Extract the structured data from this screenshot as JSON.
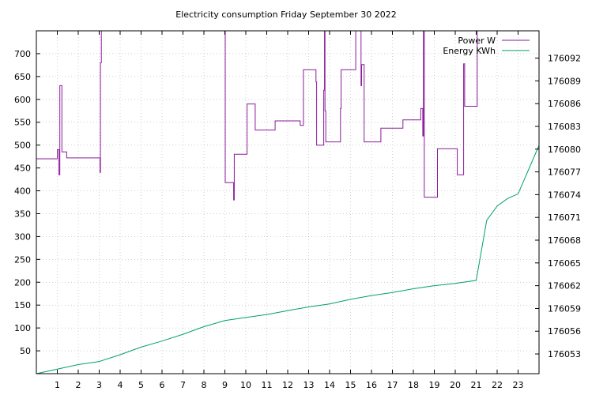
{
  "chart_data": {
    "type": "line",
    "title": "Electricity consumption Friday September 30 2022",
    "xlabel": "",
    "ylabel": "",
    "y2label": "",
    "grid": true,
    "legend_position": "top-right",
    "xlim": [
      0,
      24
    ],
    "ylim": [
      0,
      750
    ],
    "y2lim": [
      176050.4,
      176095.6
    ],
    "x_ticks": [
      1,
      2,
      3,
      4,
      5,
      6,
      7,
      8,
      9,
      10,
      11,
      12,
      13,
      14,
      15,
      16,
      17,
      18,
      19,
      20,
      21,
      22,
      23
    ],
    "y_ticks": [
      50,
      100,
      150,
      200,
      250,
      300,
      350,
      400,
      450,
      500,
      550,
      600,
      650,
      700
    ],
    "y2_ticks": [
      176053,
      176056,
      176059,
      176062,
      176065,
      176068,
      176071,
      176074,
      176077,
      176080,
      176083,
      176086,
      176089,
      176092
    ],
    "series": [
      {
        "name": "Power W",
        "axis": "left",
        "color": "#8b1a9b",
        "step": true,
        "x": [
          0,
          1.0,
          1.08,
          1.12,
          1.18,
          1.22,
          1.42,
          1.45,
          1.98,
          2.0,
          3.04,
          3.06,
          3.1,
          3.12,
          8.98,
          9.02,
          9.06,
          9.38,
          9.42,
          9.45,
          10.02,
          10.06,
          10.1,
          10.4,
          10.45,
          11.3,
          11.4,
          12.4,
          12.45,
          12.6,
          12.7,
          12.75,
          13.3,
          13.35,
          13.38,
          13.42,
          13.72,
          13.76,
          13.78,
          13.82,
          14.48,
          14.52,
          14.55,
          14.6,
          15.2,
          15.25,
          15.5,
          15.53,
          15.58,
          15.65,
          15.7,
          16.3,
          16.45,
          17.4,
          17.5,
          18.3,
          18.35,
          18.45,
          18.48,
          18.52,
          19.1,
          19.15,
          20.0,
          20.05,
          20.1,
          20.4,
          20.45,
          21.0,
          21.05,
          21.5,
          24.0
        ],
        "y": [
          470,
          490,
          435,
          630,
          630,
          485,
          485,
          472,
          472,
          472,
          440,
          680,
          750,
          750,
          750,
          418,
          418,
          418,
          380,
          480,
          480,
          590,
          590,
          590,
          533,
          533,
          553,
          553,
          553,
          543,
          543,
          665,
          665,
          638,
          500,
          500,
          620,
          750,
          575,
          507,
          507,
          580,
          665,
          665,
          665,
          750,
          630,
          676,
          676,
          507,
          507,
          507,
          537,
          537,
          555,
          555,
          580,
          520,
          750,
          386,
          386,
          492,
          492,
          492,
          435,
          678,
          585,
          585,
          750,
          750,
          750
        ]
      },
      {
        "name": "Energy KWh",
        "axis": "right",
        "color": "#009e73",
        "step": false,
        "x": [
          0,
          1,
          2,
          3,
          4,
          5,
          6,
          7,
          8,
          9,
          10,
          11,
          12,
          13,
          14,
          15,
          16,
          17,
          18,
          19,
          20,
          21,
          21.5,
          22,
          22.5,
          23,
          24
        ],
        "y": [
          176050.4,
          176051.0,
          176051.6,
          176052.0,
          176052.9,
          176053.9,
          176054.7,
          176055.6,
          176056.6,
          176057.4,
          176057.8,
          176058.2,
          176058.7,
          176059.2,
          176059.6,
          176060.2,
          176060.7,
          176061.1,
          176061.6,
          176062.0,
          176062.3,
          176062.7,
          176070.6,
          176072.5,
          176073.5,
          176074.1,
          176080.5
        ]
      }
    ]
  }
}
